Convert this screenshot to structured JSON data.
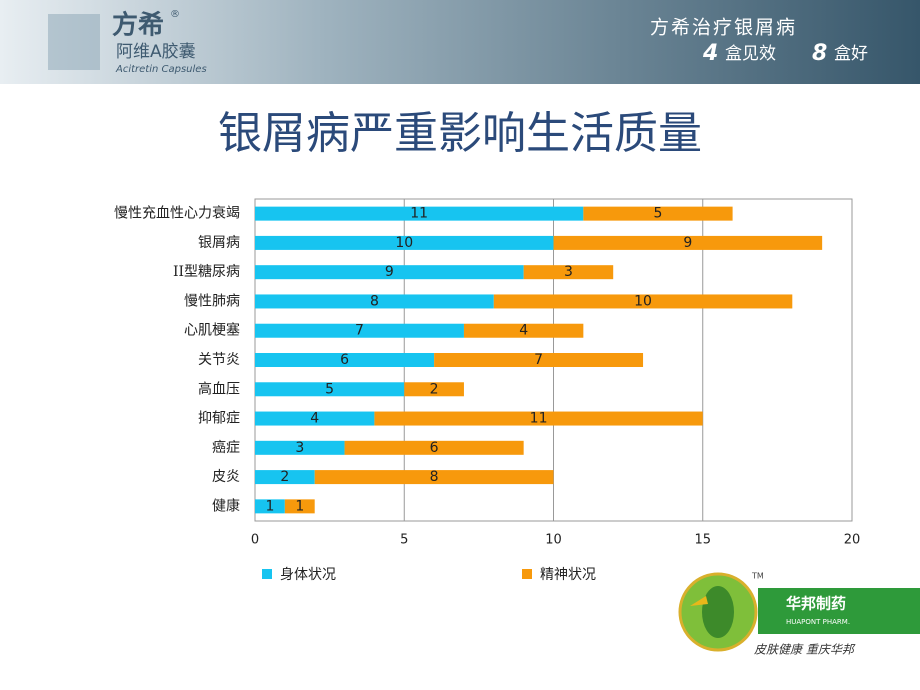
{
  "header": {
    "brand": "方希",
    "reg": "®",
    "product": "阿维A胶囊",
    "product_en": "Acitretin Capsules",
    "slogan": "方希治疗银屑病",
    "slogan_n1": "4",
    "slogan_t1": "盒见效",
    "slogan_n2": "8",
    "slogan_t2": "盒好"
  },
  "footer": {
    "tm": "TM",
    "company": "华邦制药",
    "company_en": "HUAPONT PHARM.",
    "motto": "皮肤健康  重庆华邦"
  },
  "chart_data": {
    "type": "bar",
    "orientation": "horizontal",
    "stacked": true,
    "title": "银屑病严重影响生活质量",
    "categories": [
      "慢性充血性心力衰竭",
      "银屑病",
      "II型糖尿病",
      "慢性肺病",
      "心肌梗塞",
      "关节炎",
      "高血压",
      "抑郁症",
      "癌症",
      "皮炎",
      "健康"
    ],
    "series": [
      {
        "name": "身体状况",
        "color": "#17c4f0",
        "values": [
          11,
          10,
          9,
          8,
          7,
          6,
          5,
          4,
          3,
          2,
          1
        ]
      },
      {
        "name": "精神状况",
        "color": "#f7990c",
        "values": [
          5,
          9,
          3,
          10,
          4,
          7,
          2,
          11,
          6,
          8,
          1
        ]
      }
    ],
    "xlim": [
      0,
      20
    ],
    "xticks": [
      0,
      5,
      10,
      15,
      20
    ],
    "grid": true,
    "legend": "bottom"
  }
}
